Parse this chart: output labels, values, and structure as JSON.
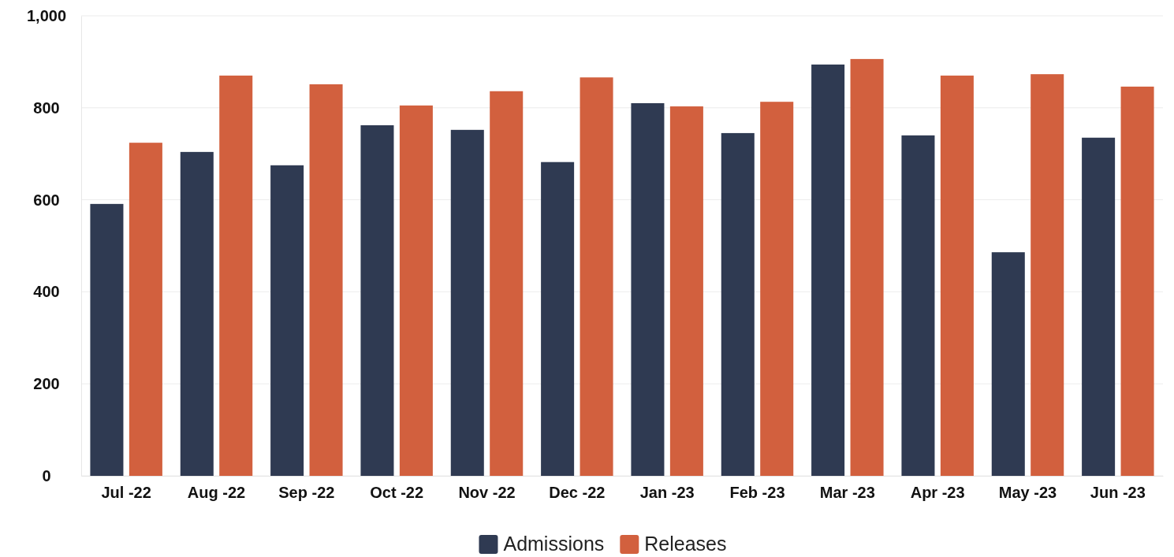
{
  "chart_data": {
    "type": "bar",
    "categories": [
      "Jul -22",
      "Aug -22",
      "Sep -22",
      "Oct -22",
      "Nov -22",
      "Dec -22",
      "Jan -23",
      "Feb -23",
      "Mar -23",
      "Apr -23",
      "May -23",
      "Jun -23"
    ],
    "series": [
      {
        "name": "Admissions",
        "color": "#2f3a52",
        "values": [
          591,
          704,
          675,
          762,
          752,
          682,
          810,
          745,
          894,
          740,
          486,
          735
        ]
      },
      {
        "name": "Releases",
        "color": "#d2603e",
        "values": [
          724,
          870,
          851,
          805,
          836,
          866,
          803,
          813,
          906,
          870,
          873,
          846
        ]
      }
    ],
    "ylim": [
      0,
      1000
    ],
    "yticks": [
      0,
      200,
      400,
      600,
      800,
      {
        "value": 1000,
        "label": "1,000"
      }
    ],
    "grid": "y",
    "legend": "bottom"
  }
}
